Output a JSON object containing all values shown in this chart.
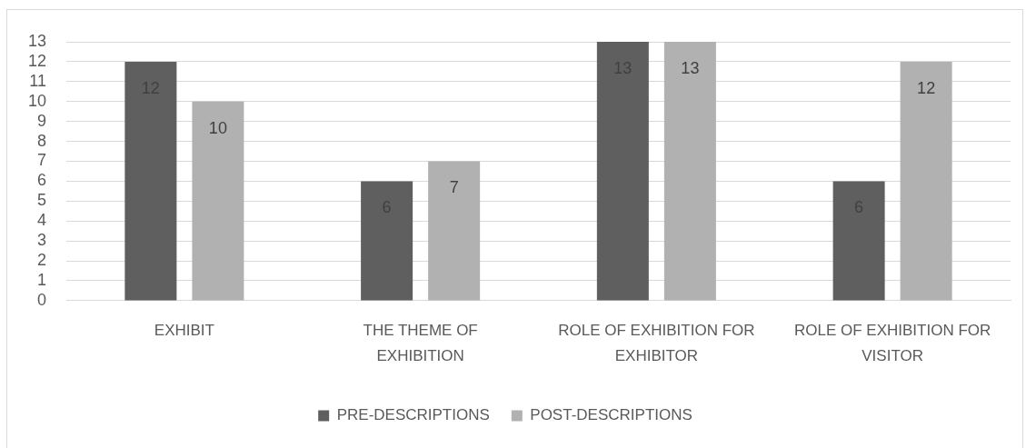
{
  "chart_data": {
    "type": "bar",
    "categories": [
      "EXHIBIT",
      "THE THEME OF EXHIBITION",
      "ROLE OF EXHIBITION FOR EXHIBITOR",
      "ROLE OF EXHIBITION FOR VISITOR"
    ],
    "series": [
      {
        "name": "PRE-DESCRIPTIONS",
        "color": "#5f5f5f",
        "values": [
          12,
          6,
          13,
          6
        ]
      },
      {
        "name": "POST-DESCRIPTIONS",
        "color": "#b1b1b1",
        "values": [
          10,
          7,
          13,
          12
        ]
      }
    ],
    "ylim": [
      0,
      13
    ],
    "yticks": [
      0,
      1,
      2,
      3,
      4,
      5,
      6,
      7,
      8,
      9,
      10,
      11,
      12,
      13
    ],
    "grid": "y",
    "legend": "bottom",
    "data_labels": true
  }
}
